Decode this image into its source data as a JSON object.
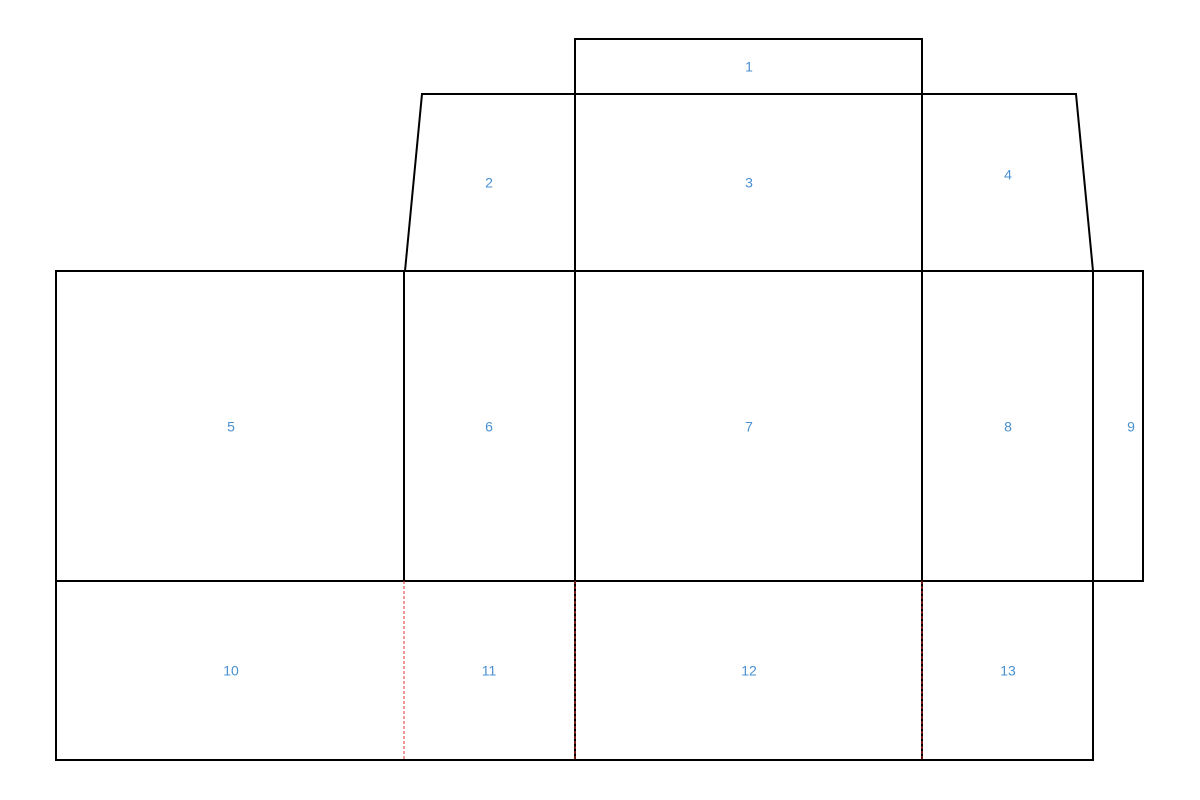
{
  "nodes": [
    {
      "label": "1"
    },
    {
      "label": "2"
    },
    {
      "label": "3"
    },
    {
      "label": "4"
    },
    {
      "label": "5"
    },
    {
      "label": "6"
    },
    {
      "label": "7"
    },
    {
      "label": "8"
    },
    {
      "label": "9"
    },
    {
      "label": "10"
    },
    {
      "label": "11"
    },
    {
      "label": "12"
    },
    {
      "label": "13"
    }
  ]
}
